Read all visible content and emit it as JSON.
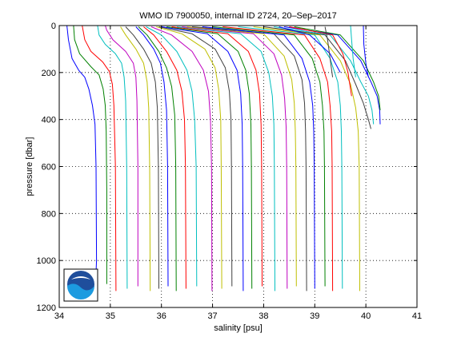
{
  "chart_data": {
    "type": "line",
    "title": "WMO ID 7900050, internal ID 2724, 20–Sep–2017",
    "xlabel": "salinity [psu]",
    "ylabel": "pressure [dbar]",
    "xlim": [
      34,
      41
    ],
    "ylim": [
      0,
      1200
    ],
    "y_reversed": true,
    "grid": true,
    "x_ticks": [
      "34",
      "35",
      "36",
      "37",
      "38",
      "39",
      "40",
      "41"
    ],
    "y_ticks": [
      "0",
      "200",
      "400",
      "600",
      "800",
      "1000",
      "1200"
    ],
    "logo": "noaa-logo",
    "colors": [
      "#0000ff",
      "#008000",
      "#ff0000",
      "#00bfbf",
      "#bf00bf",
      "#bfbf00",
      "#404040"
    ],
    "series": [
      {
        "color": "#0000ff",
        "points": [
          [
            34.15,
            0
          ],
          [
            34.18,
            60
          ],
          [
            34.25,
            140
          ],
          [
            34.38,
            190
          ],
          [
            34.5,
            220
          ],
          [
            34.58,
            270
          ],
          [
            34.65,
            340
          ],
          [
            34.7,
            420
          ],
          [
            34.72,
            600
          ],
          [
            34.73,
            1000
          ],
          [
            34.72,
            1050
          ]
        ]
      },
      {
        "color": "#008000",
        "points": [
          [
            34.28,
            0
          ],
          [
            34.3,
            60
          ],
          [
            34.4,
            120
          ],
          [
            34.62,
            175
          ],
          [
            34.78,
            210
          ],
          [
            34.86,
            270
          ],
          [
            34.9,
            340
          ],
          [
            34.92,
            450
          ],
          [
            34.93,
            700
          ],
          [
            34.93,
            1100
          ]
        ]
      },
      {
        "color": "#ff0000",
        "points": [
          [
            34.45,
            0
          ],
          [
            34.5,
            60
          ],
          [
            34.62,
            110
          ],
          [
            34.85,
            155
          ],
          [
            34.98,
            195
          ],
          [
            35.04,
            250
          ],
          [
            35.07,
            340
          ],
          [
            35.1,
            600
          ],
          [
            35.11,
            1130
          ]
        ]
      },
      {
        "color": "#00bfbf",
        "points": [
          [
            34.75,
            0
          ],
          [
            34.78,
            40
          ],
          [
            34.9,
            80
          ],
          [
            35.1,
            120
          ],
          [
            35.22,
            160
          ],
          [
            35.27,
            220
          ],
          [
            35.3,
            320
          ],
          [
            35.32,
            600
          ],
          [
            35.33,
            1120
          ]
        ]
      },
      {
        "color": "#bf00bf",
        "points": [
          [
            34.9,
            0
          ],
          [
            34.93,
            20
          ],
          [
            35.05,
            60
          ],
          [
            35.3,
            110
          ],
          [
            35.45,
            160
          ],
          [
            35.5,
            220
          ],
          [
            35.52,
            320
          ],
          [
            35.54,
            600
          ],
          [
            35.54,
            1110
          ]
        ]
      },
      {
        "color": "#bfbf00",
        "points": [
          [
            35.2,
            5
          ],
          [
            35.3,
            40
          ],
          [
            35.5,
            100
          ],
          [
            35.65,
            160
          ],
          [
            35.72,
            240
          ],
          [
            35.75,
            350
          ],
          [
            35.77,
            600
          ],
          [
            35.78,
            1130
          ]
        ]
      },
      {
        "color": "#404040",
        "points": [
          [
            35.3,
            5
          ],
          [
            35.45,
            40
          ],
          [
            35.65,
            100
          ],
          [
            35.8,
            160
          ],
          [
            35.88,
            240
          ],
          [
            35.92,
            350
          ],
          [
            35.94,
            600
          ],
          [
            35.95,
            1120
          ]
        ]
      },
      {
        "color": "#0000ff",
        "points": [
          [
            35.5,
            5
          ],
          [
            35.65,
            40
          ],
          [
            35.85,
            100
          ],
          [
            35.98,
            160
          ],
          [
            36.05,
            240
          ],
          [
            36.1,
            360
          ],
          [
            36.12,
            600
          ],
          [
            36.13,
            1110
          ]
        ]
      },
      {
        "color": "#008000",
        "points": [
          [
            35.55,
            5
          ],
          [
            35.72,
            40
          ],
          [
            35.95,
            110
          ],
          [
            36.1,
            180
          ],
          [
            36.2,
            260
          ],
          [
            36.26,
            380
          ],
          [
            36.28,
            600
          ],
          [
            36.29,
            1130
          ]
        ]
      },
      {
        "color": "#ff0000",
        "points": [
          [
            35.65,
            5
          ],
          [
            35.85,
            40
          ],
          [
            36.1,
            110
          ],
          [
            36.3,
            190
          ],
          [
            36.4,
            280
          ],
          [
            36.45,
            400
          ],
          [
            36.47,
            600
          ],
          [
            36.48,
            1120
          ]
        ]
      },
      {
        "color": "#00bfbf",
        "points": [
          [
            35.7,
            5
          ],
          [
            36.0,
            40
          ],
          [
            36.3,
            110
          ],
          [
            36.5,
            190
          ],
          [
            36.6,
            280
          ],
          [
            36.65,
            400
          ],
          [
            36.68,
            600
          ],
          [
            36.69,
            1110
          ]
        ]
      },
      {
        "color": "#bf00bf",
        "points": [
          [
            35.8,
            5
          ],
          [
            36.2,
            40
          ],
          [
            36.6,
            110
          ],
          [
            36.82,
            190
          ],
          [
            36.92,
            280
          ],
          [
            36.96,
            400
          ],
          [
            36.98,
            600
          ],
          [
            36.99,
            1130
          ]
        ]
      },
      {
        "color": "#bfbf00",
        "points": [
          [
            35.9,
            5
          ],
          [
            36.4,
            35
          ],
          [
            36.85,
            100
          ],
          [
            37.05,
            180
          ],
          [
            37.12,
            270
          ],
          [
            37.16,
            400
          ],
          [
            37.17,
            600
          ],
          [
            37.18,
            1120
          ]
        ]
      },
      {
        "color": "#404040",
        "points": [
          [
            35.95,
            5
          ],
          [
            36.6,
            35
          ],
          [
            37.05,
            100
          ],
          [
            37.25,
            180
          ],
          [
            37.33,
            280
          ],
          [
            37.36,
            400
          ],
          [
            37.37,
            600
          ],
          [
            37.38,
            1110
          ]
        ]
      },
      {
        "color": "#0000ff",
        "points": [
          [
            36.0,
            5
          ],
          [
            36.9,
            35
          ],
          [
            37.3,
            110
          ],
          [
            37.48,
            190
          ],
          [
            37.55,
            290
          ],
          [
            37.58,
            420
          ],
          [
            37.59,
            600
          ],
          [
            37.6,
            1130
          ]
        ]
      },
      {
        "color": "#008000",
        "points": [
          [
            36.1,
            5
          ],
          [
            37.1,
            35
          ],
          [
            37.5,
            110
          ],
          [
            37.65,
            190
          ],
          [
            37.72,
            290
          ],
          [
            37.75,
            420
          ],
          [
            37.76,
            600
          ],
          [
            37.77,
            1120
          ]
        ]
      },
      {
        "color": "#ff0000",
        "points": [
          [
            36.2,
            5
          ],
          [
            37.3,
            35
          ],
          [
            37.7,
            110
          ],
          [
            37.85,
            190
          ],
          [
            37.92,
            290
          ],
          [
            37.95,
            420
          ],
          [
            37.96,
            600
          ],
          [
            37.97,
            1110
          ]
        ]
      },
      {
        "color": "#00bfbf",
        "points": [
          [
            36.3,
            5
          ],
          [
            37.55,
            35
          ],
          [
            37.95,
            110
          ],
          [
            38.1,
            200
          ],
          [
            38.17,
            300
          ],
          [
            38.2,
            420
          ],
          [
            38.21,
            600
          ],
          [
            38.22,
            1130
          ]
        ]
      },
      {
        "color": "#bf00bf",
        "points": [
          [
            36.4,
            5
          ],
          [
            37.8,
            35
          ],
          [
            38.2,
            120
          ],
          [
            38.35,
            210
          ],
          [
            38.41,
            310
          ],
          [
            38.44,
            430
          ],
          [
            38.45,
            600
          ],
          [
            38.46,
            1120
          ]
        ]
      },
      {
        "color": "#bfbf00",
        "points": [
          [
            36.5,
            5
          ],
          [
            38.0,
            35
          ],
          [
            38.4,
            130
          ],
          [
            38.55,
            230
          ],
          [
            38.6,
            330
          ],
          [
            38.62,
            450
          ],
          [
            38.63,
            600
          ],
          [
            38.64,
            1110
          ]
        ]
      },
      {
        "color": "#404040",
        "points": [
          [
            36.6,
            5
          ],
          [
            38.2,
            35
          ],
          [
            38.6,
            130
          ],
          [
            38.75,
            230
          ],
          [
            38.8,
            330
          ],
          [
            38.82,
            450
          ],
          [
            38.83,
            600
          ],
          [
            38.84,
            1130
          ]
        ]
      },
      {
        "color": "#0000ff",
        "points": [
          [
            36.8,
            5
          ],
          [
            38.4,
            40
          ],
          [
            38.75,
            140
          ],
          [
            38.9,
            240
          ],
          [
            38.96,
            340
          ],
          [
            38.98,
            450
          ],
          [
            38.99,
            600
          ],
          [
            39.0,
            1120
          ]
        ]
      },
      {
        "color": "#008000",
        "points": [
          [
            37.0,
            5
          ],
          [
            38.6,
            40
          ],
          [
            38.95,
            140
          ],
          [
            39.1,
            240
          ],
          [
            39.15,
            340
          ],
          [
            39.18,
            450
          ],
          [
            39.19,
            600
          ],
          [
            39.2,
            1110
          ]
        ]
      },
      {
        "color": "#ff0000",
        "points": [
          [
            37.2,
            5
          ],
          [
            38.8,
            40
          ],
          [
            39.1,
            140
          ],
          [
            39.25,
            240
          ],
          [
            39.3,
            340
          ],
          [
            39.33,
            450
          ],
          [
            39.34,
            600
          ],
          [
            39.35,
            1130
          ]
        ]
      },
      {
        "color": "#00bfbf",
        "points": [
          [
            37.5,
            5
          ],
          [
            39.0,
            40
          ],
          [
            39.3,
            140
          ],
          [
            39.45,
            240
          ],
          [
            39.5,
            340
          ],
          [
            39.52,
            450
          ],
          [
            39.53,
            600
          ],
          [
            39.54,
            1120
          ]
        ]
      },
      {
        "color": "#bfbf00",
        "points": [
          [
            37.8,
            5
          ],
          [
            39.1,
            40
          ],
          [
            39.5,
            150
          ],
          [
            39.7,
            250
          ],
          [
            39.8,
            350
          ],
          [
            39.85,
            450
          ],
          [
            39.87,
            600
          ],
          [
            39.88,
            1130
          ]
        ]
      },
      {
        "color": "#404040",
        "points": [
          [
            38.0,
            5
          ],
          [
            39.2,
            40
          ],
          [
            39.6,
            150
          ],
          [
            39.8,
            250
          ],
          [
            39.95,
            330
          ],
          [
            40.05,
            400
          ],
          [
            40.1,
            440
          ]
        ]
      },
      {
        "color": "#00bfbf",
        "points": [
          [
            38.2,
            5
          ],
          [
            39.3,
            40
          ],
          [
            39.7,
            150
          ],
          [
            39.9,
            240
          ],
          [
            40.05,
            300
          ],
          [
            40.12,
            360
          ],
          [
            40.15,
            420
          ]
        ]
      },
      {
        "color": "#0000ff",
        "points": [
          [
            38.4,
            5
          ],
          [
            39.45,
            40
          ],
          [
            39.9,
            150
          ],
          [
            40.1,
            240
          ],
          [
            40.22,
            300
          ],
          [
            40.27,
            360
          ],
          [
            40.28,
            420
          ]
        ]
      },
      {
        "color": "#008000",
        "points": [
          [
            38.6,
            5
          ],
          [
            39.5,
            40
          ],
          [
            39.95,
            150
          ],
          [
            40.15,
            240
          ],
          [
            40.25,
            300
          ],
          [
            40.28,
            360
          ]
        ]
      },
      {
        "color": "#ff0000",
        "points": [
          [
            38.5,
            5
          ],
          [
            39.35,
            40
          ],
          [
            39.55,
            120
          ],
          [
            39.65,
            200
          ],
          [
            39.72,
            300
          ]
        ]
      },
      {
        "color": "#0000ff",
        "points": [
          [
            38.3,
            5
          ],
          [
            38.9,
            40
          ],
          [
            39.3,
            120
          ],
          [
            39.5,
            200
          ]
        ]
      },
      {
        "color": "#404040",
        "points": [
          [
            39.2,
            5
          ],
          [
            39.25,
            60
          ],
          [
            39.3,
            140
          ],
          [
            39.35,
            220
          ]
        ]
      },
      {
        "color": "#00bfbf",
        "points": [
          [
            39.7,
            0
          ],
          [
            39.72,
            60
          ],
          [
            39.75,
            140
          ],
          [
            39.8,
            220
          ]
        ]
      },
      {
        "color": "#0000ff",
        "points": [
          [
            39.95,
            0
          ],
          [
            39.96,
            80
          ],
          [
            40.0,
            160
          ],
          [
            40.05,
            220
          ]
        ]
      }
    ]
  }
}
